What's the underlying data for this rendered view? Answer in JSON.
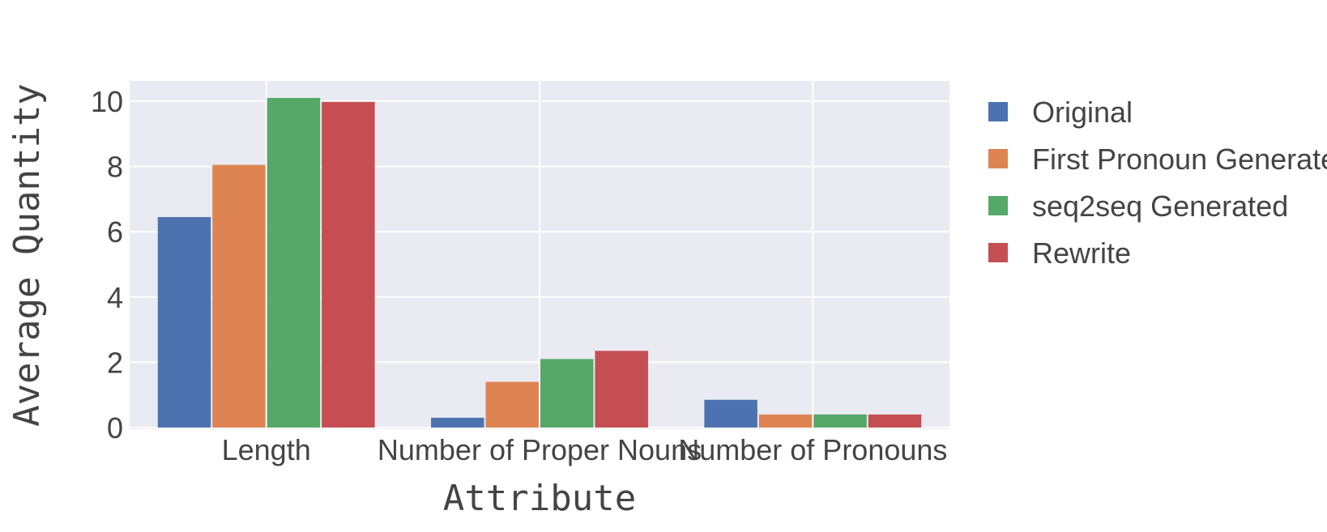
{
  "chart_data": {
    "type": "bar",
    "xlabel": "Attribute",
    "ylabel": "Average Quantity",
    "categories": [
      "Length",
      "Number of Proper Nouns",
      "Number of Pronouns"
    ],
    "series": [
      {
        "name": "Original",
        "values": [
          6.45,
          0.3,
          0.85
        ],
        "color": "#4c72b0"
      },
      {
        "name": "First Pronoun Generated",
        "values": [
          8.05,
          1.4,
          0.4
        ],
        "color": "#dd8452"
      },
      {
        "name": "seq2seq Generated",
        "values": [
          10.1,
          2.1,
          0.4
        ],
        "color": "#55a868"
      },
      {
        "name": "Rewrite",
        "values": [
          9.98,
          2.35,
          0.4
        ],
        "color": "#c44e52"
      }
    ],
    "yticks": [
      "0",
      "2",
      "4",
      "6",
      "8",
      "10"
    ],
    "ylim": [
      0,
      10.6
    ],
    "grid": true,
    "legend_position": "right",
    "plot_background": "#eaeaf2"
  }
}
